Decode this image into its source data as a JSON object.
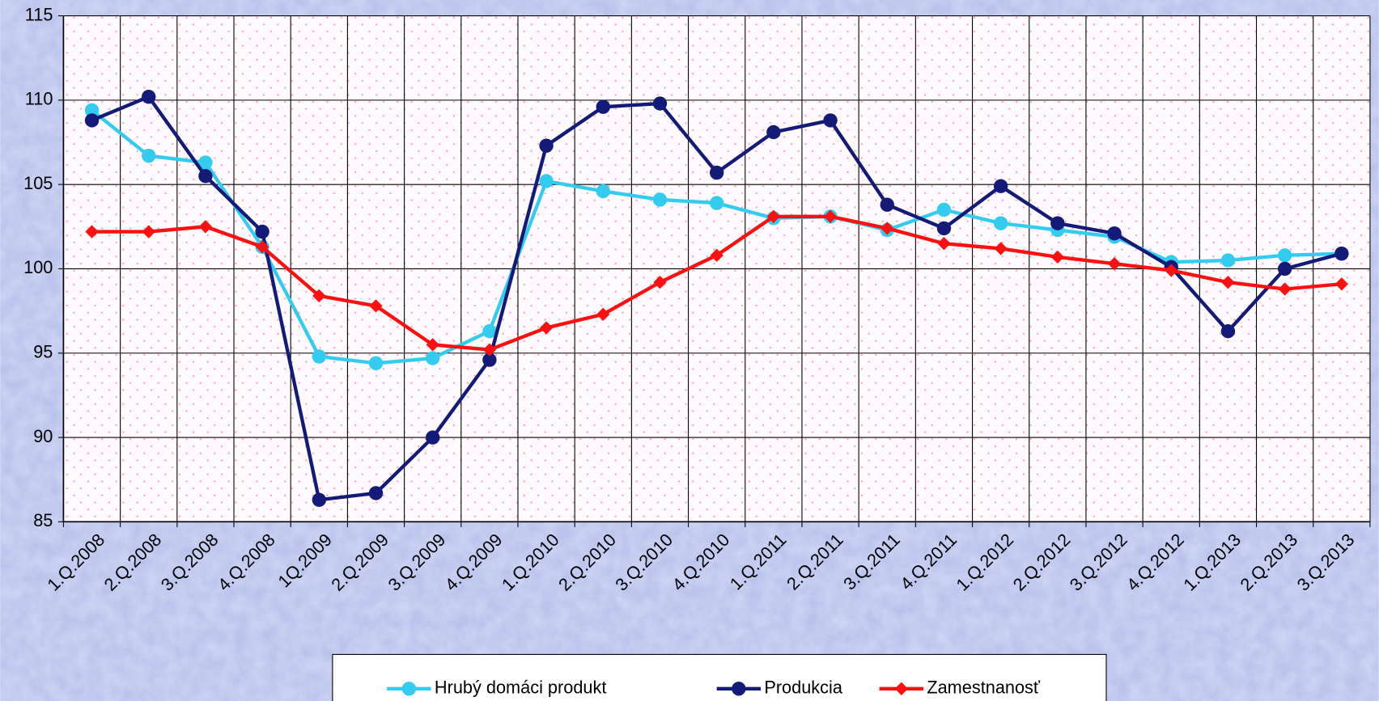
{
  "chart_data": {
    "type": "line",
    "categories": [
      "1.Q.2008",
      "2.Q.2008",
      "3.Q.2008",
      "4.Q.2008",
      "1Q.2009",
      "2.Q.2009",
      "3.Q.2009",
      "4.Q.2009",
      "1.Q.2010",
      "2.Q.2010",
      "3.Q.2010",
      "4.Q.2010",
      "1.Q.2011",
      "2.Q.2011",
      "3.Q.2011",
      "4.Q.2011",
      "1.Q.2012",
      "2.Q.2012",
      "3.Q.2012",
      "4.Q.2012",
      "1.Q.2013",
      "2.Q.2013",
      "3.Q.2013"
    ],
    "series": [
      {
        "name": "Hrubý domáci produkt",
        "color": "#33ccee",
        "marker": "circle",
        "values": [
          109.4,
          106.7,
          106.3,
          101.3,
          94.8,
          94.4,
          94.7,
          96.3,
          105.2,
          104.6,
          104.1,
          103.9,
          103.0,
          103.1,
          102.3,
          103.5,
          102.7,
          102.3,
          101.9,
          100.4,
          100.5,
          100.8,
          100.9
        ]
      },
      {
        "name": "Produkcia",
        "color": "#141a78",
        "marker": "circle",
        "values": [
          108.8,
          110.2,
          105.5,
          102.2,
          86.3,
          86.7,
          90.0,
          94.6,
          107.3,
          109.6,
          109.8,
          105.7,
          108.1,
          108.8,
          103.8,
          102.4,
          104.9,
          102.7,
          102.1,
          100.1,
          96.3,
          100.0,
          100.9
        ]
      },
      {
        "name": "Zamestnanosť",
        "color": "#ff1010",
        "marker": "diamond",
        "values": [
          102.2,
          102.2,
          102.5,
          101.3,
          98.4,
          97.8,
          95.5,
          95.2,
          96.5,
          97.3,
          99.2,
          100.8,
          103.1,
          103.1,
          102.4,
          101.5,
          101.2,
          100.7,
          100.3,
          99.9,
          99.2,
          98.8,
          99.1
        ]
      }
    ],
    "ylim": [
      85,
      115
    ],
    "yticks": [
      85,
      90,
      95,
      100,
      105,
      110,
      115
    ],
    "grid": true,
    "legend": "bottom"
  }
}
